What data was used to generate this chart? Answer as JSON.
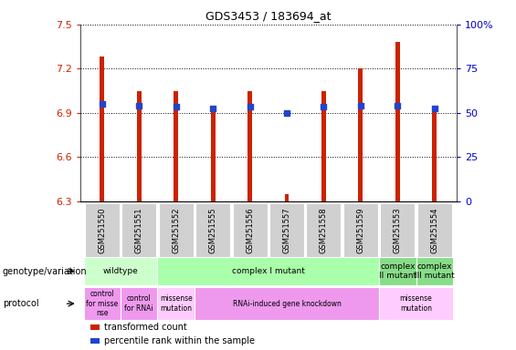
{
  "title": "GDS3453 / 183694_at",
  "samples": [
    "GSM251550",
    "GSM251551",
    "GSM251552",
    "GSM251555",
    "GSM251556",
    "GSM251557",
    "GSM251558",
    "GSM251559",
    "GSM251553",
    "GSM251554"
  ],
  "red_values": [
    7.28,
    7.05,
    7.05,
    6.92,
    7.05,
    6.35,
    7.05,
    7.2,
    7.38,
    6.95
  ],
  "blue_values": [
    6.96,
    6.95,
    6.94,
    6.93,
    6.94,
    6.9,
    6.94,
    6.95,
    6.95,
    6.93
  ],
  "y_min": 6.3,
  "y_max": 7.5,
  "y_ticks": [
    6.3,
    6.6,
    6.9,
    7.2,
    7.5
  ],
  "y_right_ticks": [
    0,
    25,
    50,
    75,
    100
  ],
  "bar_color": "#cc2200",
  "blue_color": "#2244cc",
  "genotype_row": [
    {
      "label": "wildtype",
      "start": 0,
      "end": 2,
      "color": "#ccffcc"
    },
    {
      "label": "complex I mutant",
      "start": 2,
      "end": 8,
      "color": "#aaffaa"
    },
    {
      "label": "complex\nII mutant",
      "start": 8,
      "end": 9,
      "color": "#88dd88"
    },
    {
      "label": "complex\nIII mutant",
      "start": 9,
      "end": 10,
      "color": "#88dd88"
    }
  ],
  "protocol_row": [
    {
      "label": "control\nfor misse\nnse",
      "start": 0,
      "end": 1,
      "color": "#ee99ee"
    },
    {
      "label": "control\nfor RNAi",
      "start": 1,
      "end": 2,
      "color": "#ee99ee"
    },
    {
      "label": "missense\nmutation",
      "start": 2,
      "end": 3,
      "color": "#ffccff"
    },
    {
      "label": "RNAi-induced gene knockdown",
      "start": 3,
      "end": 8,
      "color": "#ee99ee"
    },
    {
      "label": "missense\nmutation",
      "start": 8,
      "end": 10,
      "color": "#ffccff"
    }
  ],
  "legend_items": [
    {
      "color": "#cc2200",
      "label": "transformed count"
    },
    {
      "color": "#2244cc",
      "label": "percentile rank within the sample"
    }
  ],
  "bar_width": 0.12
}
